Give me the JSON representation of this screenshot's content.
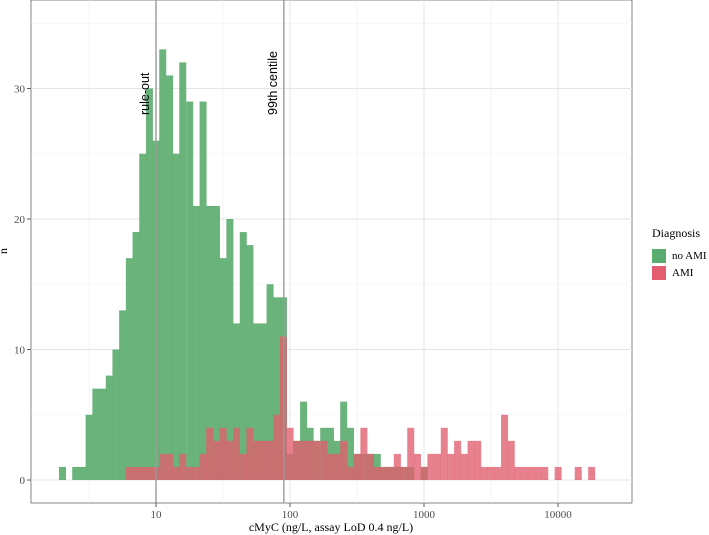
{
  "chart_data": {
    "type": "bar",
    "subtype": "overlapping histogram",
    "title": "",
    "xlabel": "cMyC (ng/L, assay LoD 0.4 ng/L)",
    "ylabel": "n",
    "x_scale": "log10",
    "xlim": [
      1.5,
      30000
    ],
    "ylim": [
      0,
      36
    ],
    "x_ticks": [
      10,
      100,
      1000,
      10000
    ],
    "x_tick_labels": [
      "10",
      "100",
      "1000",
      "10000"
    ],
    "y_ticks": [
      0,
      10,
      20,
      30
    ],
    "y_tick_labels": [
      "0",
      "10",
      "20",
      "30"
    ],
    "bin_width_log10": 0.05,
    "grid": true,
    "legend": {
      "title": "Diagnosis",
      "position": "right"
    },
    "reference_lines": [
      {
        "label": "rule-out",
        "x": 10
      },
      {
        "label": "99th centile",
        "x": 90
      }
    ],
    "series": [
      {
        "name": "no AMI",
        "color": "#5aac6e",
        "bins": [
          [
            2.0,
            1
          ],
          [
            2.24,
            0
          ],
          [
            2.51,
            1
          ],
          [
            2.82,
            1
          ],
          [
            3.16,
            5
          ],
          [
            3.55,
            7
          ],
          [
            3.98,
            7
          ],
          [
            4.47,
            8
          ],
          [
            5.01,
            10
          ],
          [
            5.62,
            13
          ],
          [
            6.31,
            17
          ],
          [
            7.08,
            19
          ],
          [
            7.94,
            25
          ],
          [
            8.91,
            30
          ],
          [
            10.0,
            26
          ],
          [
            11.2,
            33
          ],
          [
            12.6,
            31
          ],
          [
            14.1,
            25
          ],
          [
            15.8,
            32
          ],
          [
            17.8,
            29
          ],
          [
            20.0,
            21
          ],
          [
            22.4,
            29
          ],
          [
            25.1,
            21
          ],
          [
            28.2,
            21
          ],
          [
            31.6,
            17
          ],
          [
            35.5,
            20
          ],
          [
            39.8,
            12
          ],
          [
            44.7,
            19
          ],
          [
            50.1,
            18
          ],
          [
            56.2,
            12
          ],
          [
            63.1,
            12
          ],
          [
            70.8,
            15
          ],
          [
            79.4,
            14
          ],
          [
            89.1,
            14
          ],
          [
            100,
            2
          ],
          [
            112,
            3
          ],
          [
            126,
            6
          ],
          [
            141,
            4
          ],
          [
            158,
            3
          ],
          [
            178,
            4
          ],
          [
            200,
            4
          ],
          [
            224,
            3
          ],
          [
            251,
            6
          ],
          [
            282,
            4
          ],
          [
            316,
            2
          ],
          [
            355,
            2
          ],
          [
            398,
            2
          ],
          [
            447,
            2
          ],
          [
            501,
            1
          ],
          [
            562,
            1
          ],
          [
            631,
            1
          ],
          [
            708,
            1
          ],
          [
            794,
            1
          ],
          [
            891,
            0
          ],
          [
            1000,
            1
          ]
        ]
      },
      {
        "name": "AMI",
        "color": "#e25e6e",
        "bins": [
          [
            6.31,
            1
          ],
          [
            7.08,
            1
          ],
          [
            7.94,
            1
          ],
          [
            8.91,
            1
          ],
          [
            10.0,
            1
          ],
          [
            11.2,
            2
          ],
          [
            12.6,
            2
          ],
          [
            14.1,
            1
          ],
          [
            15.8,
            2
          ],
          [
            17.8,
            1
          ],
          [
            20.0,
            1
          ],
          [
            22.4,
            2
          ],
          [
            25.1,
            4
          ],
          [
            28.2,
            3
          ],
          [
            31.6,
            4
          ],
          [
            35.5,
            3
          ],
          [
            39.8,
            4
          ],
          [
            44.7,
            2
          ],
          [
            50.1,
            4
          ],
          [
            56.2,
            3
          ],
          [
            63.1,
            3
          ],
          [
            70.8,
            3
          ],
          [
            79.4,
            5
          ],
          [
            89.1,
            11
          ],
          [
            100,
            4
          ],
          [
            112,
            3
          ],
          [
            126,
            3
          ],
          [
            141,
            3
          ],
          [
            158,
            3
          ],
          [
            178,
            3
          ],
          [
            200,
            2
          ],
          [
            224,
            2
          ],
          [
            251,
            3
          ],
          [
            282,
            1
          ],
          [
            316,
            2
          ],
          [
            355,
            4
          ],
          [
            398,
            2
          ],
          [
            447,
            1
          ],
          [
            501,
            1
          ],
          [
            562,
            1
          ],
          [
            631,
            2
          ],
          [
            708,
            1
          ],
          [
            794,
            4
          ],
          [
            891,
            2
          ],
          [
            1000,
            1
          ],
          [
            1122,
            2
          ],
          [
            1259,
            2
          ],
          [
            1413,
            4
          ],
          [
            1585,
            2
          ],
          [
            1778,
            3
          ],
          [
            1995,
            2
          ],
          [
            2239,
            3
          ],
          [
            2512,
            3
          ],
          [
            2818,
            1
          ],
          [
            3162,
            1
          ],
          [
            3548,
            1
          ],
          [
            3981,
            5
          ],
          [
            4467,
            3
          ],
          [
            5012,
            1
          ],
          [
            5623,
            1
          ],
          [
            6310,
            1
          ],
          [
            7079,
            1
          ],
          [
            7943,
            1
          ],
          [
            8913,
            0
          ],
          [
            10000,
            1
          ],
          [
            11220,
            0
          ],
          [
            12589,
            0
          ],
          [
            14125,
            1
          ],
          [
            15849,
            0
          ],
          [
            17783,
            1
          ]
        ]
      }
    ]
  }
}
